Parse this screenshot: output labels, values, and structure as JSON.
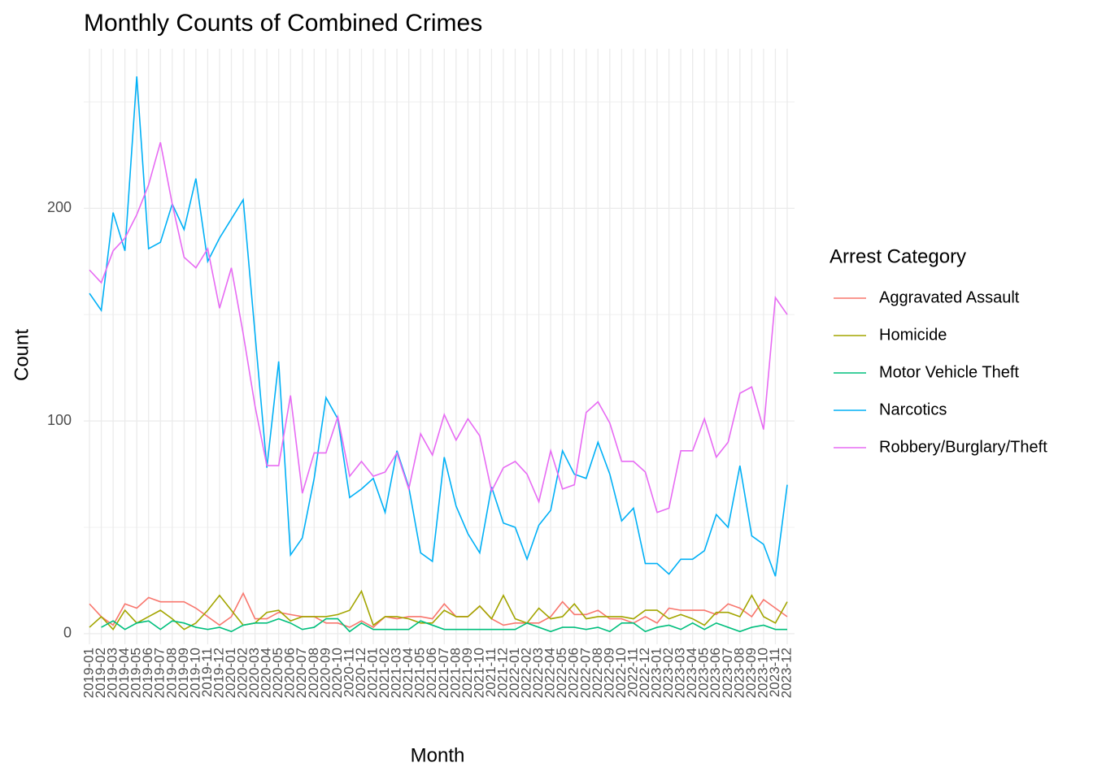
{
  "chart_data": {
    "type": "line",
    "title": "Monthly Counts of Combined Crimes",
    "x_label": "Month",
    "y_label": "Count",
    "legend_title": "Arrest Category",
    "legend_position": "right",
    "grid": true,
    "categories": [
      "2019-01",
      "2019-02",
      "2019-03",
      "2019-04",
      "2019-05",
      "2019-06",
      "2019-07",
      "2019-08",
      "2019-09",
      "2019-10",
      "2019-11",
      "2019-12",
      "2020-01",
      "2020-02",
      "2020-03",
      "2020-04",
      "2020-05",
      "2020-06",
      "2020-07",
      "2020-08",
      "2020-09",
      "2020-10",
      "2020-11",
      "2020-12",
      "2021-01",
      "2021-02",
      "2021-03",
      "2021-04",
      "2021-05",
      "2021-06",
      "2021-07",
      "2021-08",
      "2021-09",
      "2021-10",
      "2021-11",
      "2021-12",
      "2022-01",
      "2022-02",
      "2022-03",
      "2022-04",
      "2022-05",
      "2022-06",
      "2022-07",
      "2022-08",
      "2022-09",
      "2022-10",
      "2022-11",
      "2022-12",
      "2023-01",
      "2023-02",
      "2023-03",
      "2023-04",
      "2023-05",
      "2023-06",
      "2023-07",
      "2023-08",
      "2023-09",
      "2023-10",
      "2023-11",
      "2023-12"
    ],
    "ylim": [
      -5,
      275
    ],
    "yticks": [
      0,
      100,
      200
    ],
    "series": [
      {
        "name": "Aggravated Assault",
        "color": "#F8766D",
        "values": [
          14,
          8,
          4,
          14,
          12,
          17,
          15,
          15,
          15,
          12,
          8,
          4,
          8,
          19,
          7,
          7,
          10,
          9,
          8,
          8,
          5,
          5,
          3,
          6,
          3,
          8,
          7,
          8,
          8,
          7,
          14,
          8,
          8,
          13,
          7,
          4,
          5,
          5,
          5,
          8,
          15,
          9,
          9,
          11,
          7,
          7,
          5,
          8,
          5,
          12,
          11,
          11,
          11,
          9,
          14,
          12,
          8,
          16,
          12,
          8
        ]
      },
      {
        "name": "Homicide",
        "color": "#A3A500",
        "values": [
          3,
          8,
          2,
          11,
          5,
          8,
          11,
          7,
          2,
          5,
          11,
          18,
          11,
          4,
          5,
          10,
          11,
          6,
          8,
          8,
          8,
          9,
          11,
          20,
          4,
          8,
          8,
          7,
          5,
          5,
          11,
          8,
          8,
          13,
          7,
          18,
          7,
          5,
          12,
          7,
          8,
          14,
          7,
          8,
          8,
          8,
          7,
          11,
          11,
          7,
          9,
          7,
          4,
          10,
          10,
          8,
          18,
          8,
          5,
          15
        ]
      },
      {
        "name": "Motor Vehicle Theft",
        "color": "#00BF7D",
        "values": [
          null,
          3,
          6,
          2,
          5,
          6,
          2,
          6,
          5,
          3,
          2,
          3,
          1,
          4,
          5,
          5,
          7,
          5,
          2,
          3,
          7,
          7,
          1,
          5,
          2,
          2,
          2,
          2,
          6,
          4,
          2,
          2,
          2,
          2,
          2,
          2,
          2,
          5,
          3,
          1,
          3,
          3,
          2,
          3,
          1,
          5,
          5,
          1,
          3,
          4,
          2,
          5,
          2,
          5,
          3,
          1,
          3,
          4,
          2,
          2
        ]
      },
      {
        "name": "Narcotics",
        "color": "#00B0F6",
        "values": [
          160,
          152,
          198,
          180,
          262,
          181,
          184,
          202,
          190,
          214,
          175,
          186,
          195,
          204,
          141,
          78,
          128,
          37,
          45,
          73,
          111,
          101,
          64,
          68,
          73,
          57,
          86,
          69,
          38,
          34,
          83,
          60,
          47,
          38,
          69,
          52,
          50,
          35,
          51,
          58,
          86,
          75,
          73,
          90,
          75,
          53,
          59,
          33,
          33,
          28,
          35,
          35,
          39,
          56,
          50,
          79,
          46,
          42,
          27,
          70
        ]
      },
      {
        "name": "Robbery/Burglary/Theft",
        "color": "#E76BF3",
        "values": [
          171,
          165,
          180,
          186,
          197,
          211,
          231,
          202,
          177,
          172,
          181,
          153,
          172,
          141,
          107,
          79,
          79,
          112,
          66,
          85,
          85,
          102,
          74,
          81,
          74,
          76,
          85,
          68,
          94,
          84,
          103,
          91,
          101,
          93,
          67,
          78,
          81,
          75,
          62,
          86,
          68,
          70,
          104,
          109,
          99,
          81,
          81,
          76,
          57,
          59,
          86,
          86,
          101,
          83,
          90,
          113,
          116,
          96,
          158,
          150
        ]
      }
    ]
  }
}
